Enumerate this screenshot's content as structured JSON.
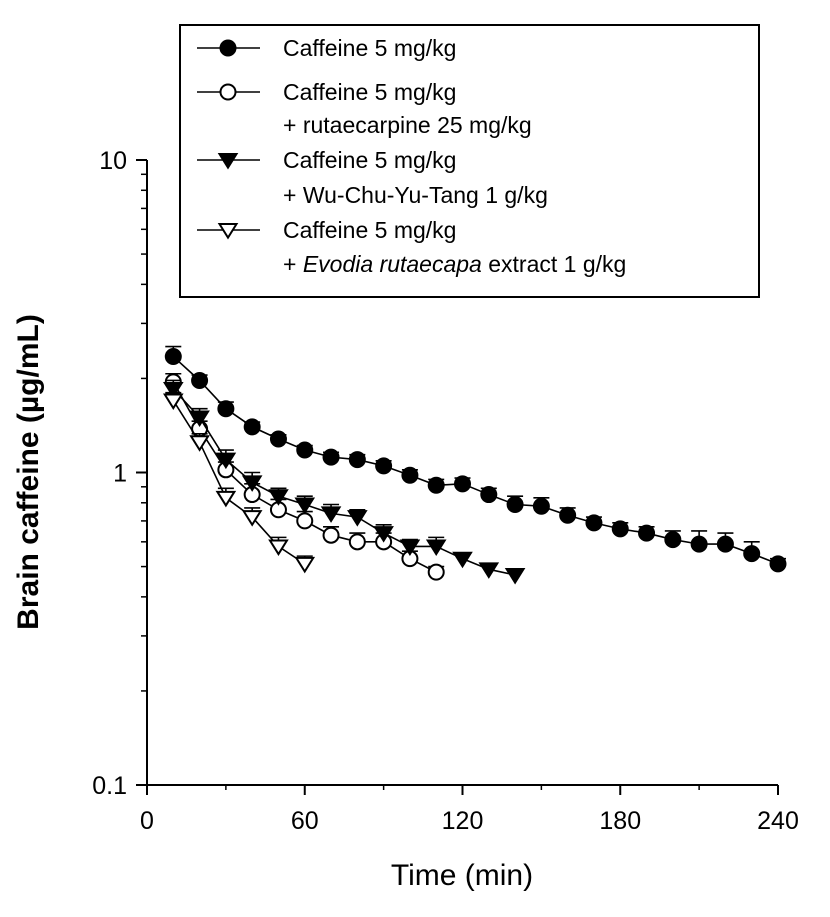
{
  "chart_data": {
    "type": "line",
    "title": "",
    "xlabel": "Time (min)",
    "ylabel": "Brain caffeine (µg/mL)",
    "xlim": [
      0,
      240
    ],
    "ylim": [
      0.1,
      10
    ],
    "yscale": "log",
    "grid": false,
    "legend_position": "top-right",
    "x_ticks": [
      0,
      60,
      120,
      180,
      240
    ],
    "x_tick_labels": [
      "0",
      "60",
      "120",
      "180",
      "240"
    ],
    "y_ticks": [
      0.1,
      1,
      10
    ],
    "y_tick_labels": [
      "0.1",
      "1",
      "10"
    ],
    "series": [
      {
        "name": "Caffeine 5 mg/kg",
        "marker": "circle-filled",
        "x": [
          10,
          20,
          30,
          40,
          50,
          60,
          70,
          80,
          90,
          100,
          110,
          120,
          130,
          140,
          150,
          160,
          170,
          180,
          190,
          200,
          210,
          220,
          230,
          240
        ],
        "y": [
          2.35,
          1.97,
          1.6,
          1.4,
          1.28,
          1.18,
          1.12,
          1.1,
          1.05,
          0.98,
          0.91,
          0.92,
          0.85,
          0.79,
          0.78,
          0.73,
          0.69,
          0.66,
          0.64,
          0.61,
          0.59,
          0.59,
          0.55,
          0.51
        ],
        "err": [
          0.18,
          0.08,
          0.08,
          0.05,
          0.04,
          0.04,
          0.04,
          0.04,
          0.04,
          0.04,
          0.04,
          0.04,
          0.04,
          0.05,
          0.05,
          0.04,
          0.03,
          0.03,
          0.03,
          0.04,
          0.06,
          0.05,
          0.05,
          0.02
        ]
      },
      {
        "name": "Caffeine 5 mg/kg",
        "name2": "+ rutaecarpine 25 mg/kg",
        "marker": "circle-open",
        "x": [
          10,
          20,
          30,
          40,
          50,
          60,
          70,
          80,
          90,
          100,
          110
        ],
        "y": [
          1.95,
          1.38,
          1.02,
          0.85,
          0.76,
          0.7,
          0.63,
          0.6,
          0.6,
          0.53,
          0.48
        ],
        "err": [
          0.12,
          0.08,
          0.06,
          0.07,
          0.06,
          0.05,
          0.04,
          0.04,
          0.04,
          0.03,
          0.02
        ]
      },
      {
        "name": "Caffeine 5 mg/kg",
        "name2": "+ Wu-Chu-Yu-Tang 1 g/kg",
        "marker": "triangle-down-filled",
        "x": [
          10,
          20,
          30,
          40,
          50,
          60,
          70,
          80,
          90,
          100,
          110,
          120,
          130,
          140
        ],
        "y": [
          1.85,
          1.5,
          1.1,
          0.93,
          0.84,
          0.79,
          0.74,
          0.72,
          0.64,
          0.58,
          0.58,
          0.53,
          0.49,
          0.47
        ],
        "err": [
          0.12,
          0.1,
          0.08,
          0.07,
          0.05,
          0.05,
          0.05,
          0.04,
          0.04,
          0.03,
          0.04,
          0.02,
          0.02,
          0.02
        ]
      },
      {
        "name": "Caffeine 5 mg/kg",
        "name2_prefix": "+ ",
        "name2_italic": "Evodia rutaecapa",
        "name2_suffix": " extract 1 g/kg",
        "marker": "triangle-down-open",
        "x": [
          10,
          20,
          30,
          40,
          50,
          60
        ],
        "y": [
          1.7,
          1.25,
          0.83,
          0.72,
          0.58,
          0.51
        ],
        "err": [
          0.1,
          0.08,
          0.06,
          0.05,
          0.04,
          0.03
        ]
      }
    ]
  }
}
